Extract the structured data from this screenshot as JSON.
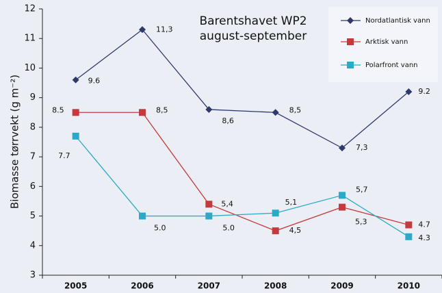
{
  "chart_data": {
    "type": "line",
    "title": "Barentshavet  WP2",
    "subtitle": "august-september",
    "y_label": "Biomasse tørrvekt (g m⁻²)",
    "categories": [
      "2005",
      "2006",
      "2007",
      "2008",
      "2009",
      "2010"
    ],
    "series": [
      {
        "name": "Nordatlantisk vann",
        "color": "#2f3a6b",
        "marker": "diamond",
        "values": [
          9.6,
          11.3,
          8.6,
          8.5,
          7.3,
          9.2
        ],
        "value_labels": [
          "9.6",
          "11,3",
          "8,6",
          "8,5",
          "7,3",
          "9.2"
        ]
      },
      {
        "name": "Arktisk vann",
        "color": "#c33a3c",
        "marker": "square",
        "values": [
          8.5,
          8.5,
          5.4,
          4.5,
          5.3,
          4.7
        ],
        "value_labels": [
          "8.5",
          "8,5",
          "5,4",
          "4,5",
          "5,3",
          "4.7"
        ]
      },
      {
        "name": "Polarfront vann",
        "color": "#2aaac7",
        "marker": "square",
        "values": [
          7.7,
          5.0,
          5.0,
          5.1,
          5.7,
          4.3
        ],
        "value_labels": [
          "7.7",
          "5.0",
          "5.0",
          "5,1",
          "5,7",
          "4.3"
        ]
      }
    ],
    "ylim": [
      3,
      12
    ],
    "yticks": [
      3,
      4,
      5,
      6,
      7,
      8,
      9,
      10,
      11,
      12
    ],
    "legend": "top-right"
  }
}
